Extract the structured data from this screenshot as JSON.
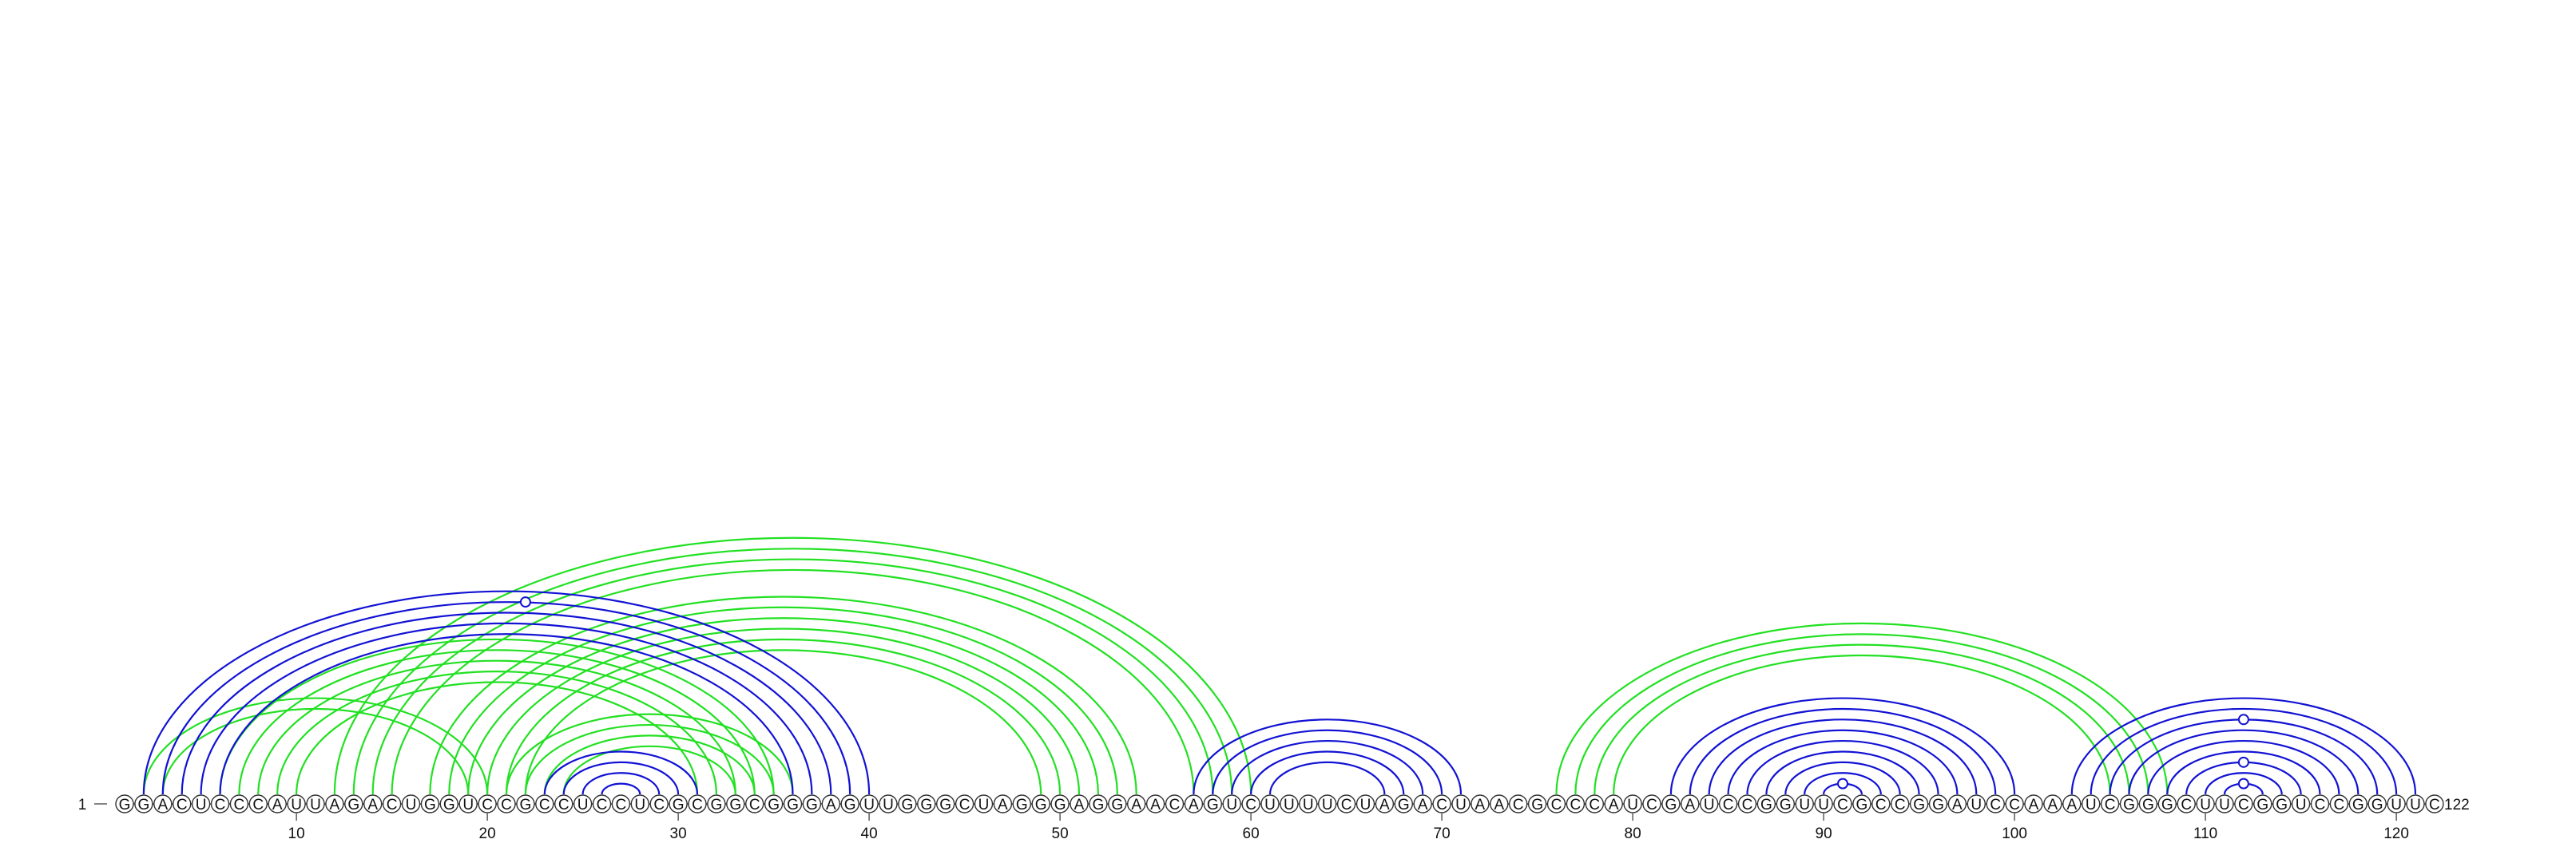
{
  "sequence": "GGACUCCCAUUAGACUGGUCCGCCUCCUCGCGGCGGGAGUUGGGCUAGGGAGGAACAGUCUUUUCUAGACUAACGCCCAUCGAUCCGGUUCGCCGGAUCCAAAUCGGGCUUCGGUCCGGUUC",
  "start_label": "1",
  "end_label": "122",
  "ticks": [
    "10",
    "20",
    "30",
    "40",
    "50",
    "60",
    "70",
    "80",
    "90",
    "100",
    "110",
    "120"
  ],
  "colors": {
    "blue_pairs": "#1212d4",
    "green_pairs": "#22e022",
    "backbone": "#333333"
  },
  "chart_data": {
    "type": "arc diagram",
    "title": "",
    "blue_pairs": [
      [
        2,
        40
      ],
      [
        3,
        39
      ],
      [
        4,
        38
      ],
      [
        5,
        37
      ],
      [
        6,
        36
      ],
      [
        23,
        31
      ],
      [
        24,
        30
      ],
      [
        25,
        29
      ],
      [
        26,
        28
      ],
      [
        57,
        71
      ],
      [
        58,
        70
      ],
      [
        59,
        69
      ],
      [
        60,
        68
      ],
      [
        61,
        67
      ],
      [
        82,
        100
      ],
      [
        83,
        99
      ],
      [
        84,
        98
      ],
      [
        85,
        97
      ],
      [
        86,
        96
      ],
      [
        87,
        95
      ],
      [
        88,
        94
      ],
      [
        89,
        93
      ],
      [
        90,
        92
      ],
      [
        103,
        121
      ],
      [
        104,
        120
      ],
      [
        105,
        119
      ],
      [
        106,
        118
      ],
      [
        107,
        117
      ],
      [
        108,
        116
      ],
      [
        109,
        115
      ],
      [
        110,
        114
      ],
      [
        111,
        113
      ]
    ],
    "green_pairs": [
      [
        2,
        20
      ],
      [
        3,
        19
      ],
      [
        6,
        35
      ],
      [
        7,
        34
      ],
      [
        8,
        33
      ],
      [
        9,
        32
      ],
      [
        10,
        31
      ],
      [
        12,
        60
      ],
      [
        13,
        59
      ],
      [
        14,
        58
      ],
      [
        15,
        57
      ],
      [
        17,
        54
      ],
      [
        18,
        53
      ],
      [
        19,
        52
      ],
      [
        20,
        51
      ],
      [
        21,
        50
      ],
      [
        22,
        49
      ],
      [
        21,
        36
      ],
      [
        22,
        35
      ],
      [
        23,
        34
      ],
      [
        24,
        33
      ],
      [
        76,
        108
      ],
      [
        77,
        107
      ],
      [
        78,
        106
      ],
      [
        79,
        105
      ]
    ],
    "markers": [
      22,
      91,
      112,
      112,
      112
    ]
  }
}
